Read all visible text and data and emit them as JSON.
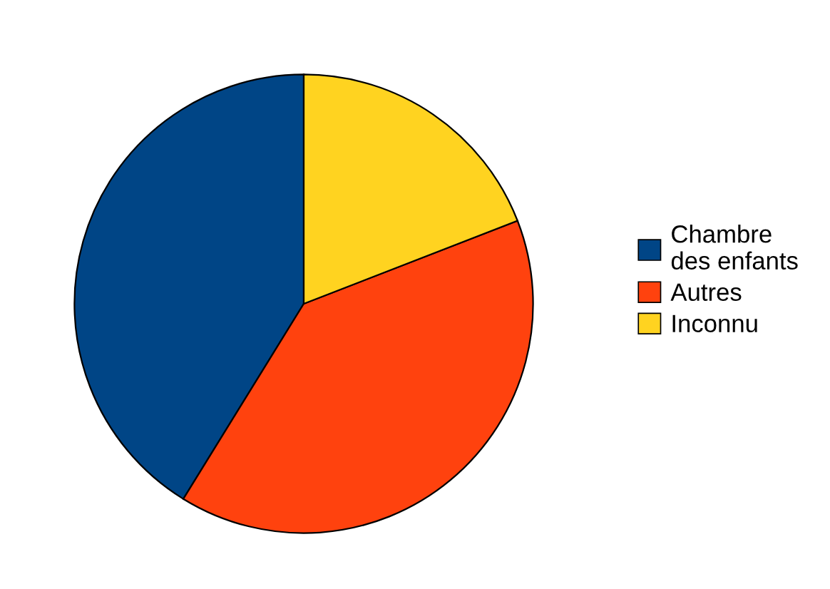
{
  "chart_data": {
    "type": "pie",
    "categories": [
      "Chambre des enfants",
      "Autres",
      "Inconnu"
    ],
    "values": [
      41.2,
      39.7,
      19.1
    ],
    "colors": [
      "#004586",
      "#ff420e",
      "#ffd320"
    ],
    "legend": "right"
  }
}
